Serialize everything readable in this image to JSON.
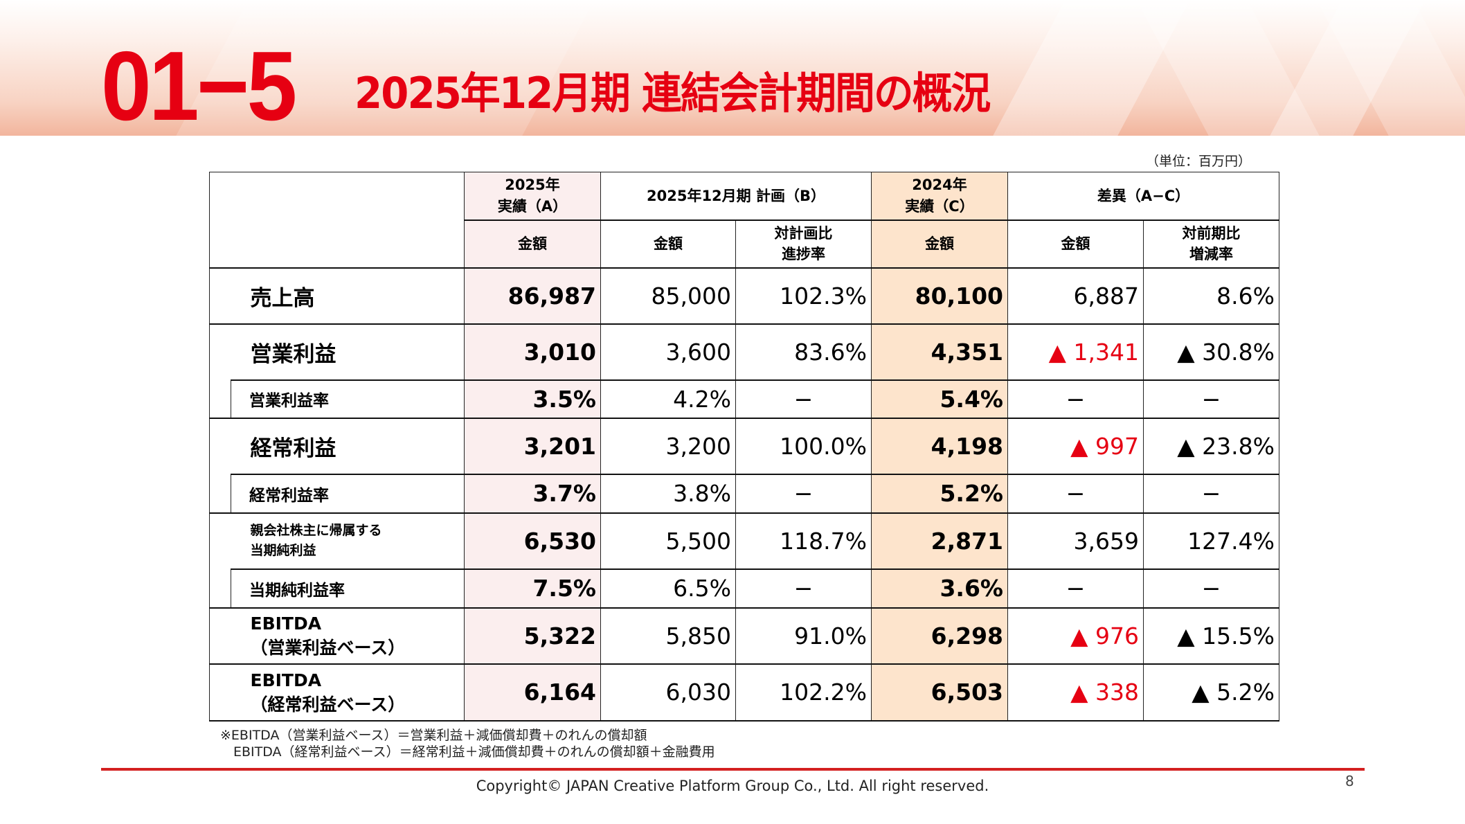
{
  "header": {
    "section_number": "01−5",
    "title": "2025年12月期 連結会計期間の概況",
    "unit": "（単位：百万円）",
    "accent_color": "#e60012"
  },
  "table": {
    "col_headers": {
      "a_top": "2025年",
      "a_bottom": "実績（A）",
      "b": "2025年12月期 計画（B）",
      "c_top": "2024年",
      "c_bottom": "実績（C）",
      "diff": "差異（A−C）",
      "a_amount": "金額",
      "b_amount": "金額",
      "b_ratio_top": "対計画比",
      "b_ratio_bottom": "進捗率",
      "c_amount": "金額",
      "d_amount": "金額",
      "d_ratio_top": "対前期比",
      "d_ratio_bottom": "増減率"
    },
    "rows": [
      {
        "label": "売上高",
        "a": "86,987",
        "b": "85,000",
        "b_ratio": "102.3%",
        "c": "80,100",
        "d": "6,887",
        "d_ratio": "8.6%"
      },
      {
        "label": "営業利益",
        "a": "3,010",
        "b": "3,600",
        "b_ratio": "83.6%",
        "c": "4,351",
        "d": "▲ 1,341",
        "d_ratio": "▲ 30.8%"
      },
      {
        "label": "営業利益率",
        "a": "3.5%",
        "b": "4.2%",
        "b_ratio": "−",
        "c": "5.4%",
        "d": "−",
        "d_ratio": "−"
      },
      {
        "label": "経常利益",
        "a": "3,201",
        "b": "3,200",
        "b_ratio": "100.0%",
        "c": "4,198",
        "d": "▲ 997",
        "d_ratio": "▲ 23.8%"
      },
      {
        "label": "経常利益率",
        "a": "3.7%",
        "b": "3.8%",
        "b_ratio": "−",
        "c": "5.2%",
        "d": "−",
        "d_ratio": "−"
      },
      {
        "label_line1": "親会社株主に帰属する",
        "label_line2": "当期純利益",
        "a": "6,530",
        "b": "5,500",
        "b_ratio": "118.7%",
        "c": "2,871",
        "d": "3,659",
        "d_ratio": "127.4%"
      },
      {
        "label": "当期純利益率",
        "a": "7.5%",
        "b": "6.5%",
        "b_ratio": "−",
        "c": "3.6%",
        "d": "−",
        "d_ratio": "−"
      },
      {
        "label_line1": "EBITDA",
        "label_line2": "（営業利益ベース）",
        "a": "5,322",
        "b": "5,850",
        "b_ratio": "91.0%",
        "c": "6,298",
        "d": "▲ 976",
        "d_ratio": "▲ 15.5%"
      },
      {
        "label_line1": "EBITDA",
        "label_line2": "（経常利益ベース）",
        "a": "6,164",
        "b": "6,030",
        "b_ratio": "102.2%",
        "c": "6,503",
        "d": "▲ 338",
        "d_ratio": "▲ 5.2%"
      }
    ]
  },
  "notes": [
    "※EBITDA（営業利益ベース）＝営業利益＋減価償却費＋のれんの償却額",
    "　EBITDA（経常利益ベース）＝経常利益＋減価償却費＋のれんの償却額＋金融費用"
  ],
  "footer": {
    "copyright": "Copyright© JAPAN Creative Platform Group Co., Ltd. All right reserved.",
    "page_number": "8"
  }
}
